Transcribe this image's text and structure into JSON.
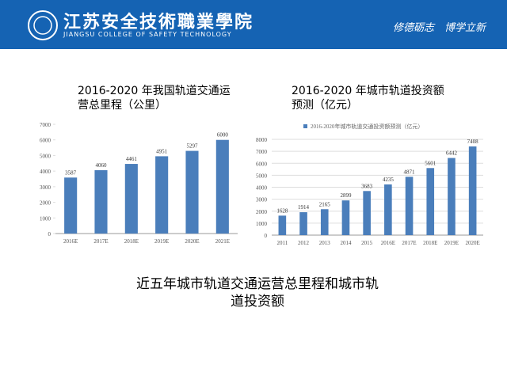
{
  "header": {
    "school_name": "江苏安全技術職業學院",
    "school_name_en": "JIANGSU COLLEGE OF SAFETY TECHNOLOGY",
    "motto": "修德砺志　博学立新"
  },
  "chart_data": [
    {
      "type": "bar",
      "title": "2016-2020 年我国轨道交通运营总里程（公里）",
      "categories": [
        "2016E",
        "2017E",
        "2018E",
        "2019E",
        "2020E",
        "2021E"
      ],
      "values": [
        3587,
        4060,
        4461,
        4951,
        5297,
        6000
      ],
      "color": "#4a7ebb",
      "ylim": [
        0,
        7000
      ],
      "yticks": [
        0,
        1000,
        2000,
        3000,
        4000,
        5000,
        6000,
        7000
      ],
      "grid": false
    },
    {
      "type": "bar",
      "title": "2016-2020 年城市轨道投资额预测（亿元）",
      "categories": [
        "2011",
        "2012",
        "2013",
        "2014",
        "2015",
        "2016E",
        "2017E",
        "2018E",
        "2019E",
        "2020E"
      ],
      "series": [
        {
          "name": "2016-2020年城市轨道交通投资额预测（亿元）",
          "color": "#4a7ebb",
          "values": [
            1628,
            1914,
            2165,
            2899,
            3683,
            4235,
            4871,
            5601,
            6442,
            7408
          ]
        }
      ],
      "ylim": [
        0,
        8000
      ],
      "yticks": [
        0,
        1000,
        2000,
        3000,
        4000,
        5000,
        6000,
        7000,
        8000
      ],
      "grid": true
    }
  ],
  "caption": "近五年城市轨道交通运营总里程和城市轨道投资额"
}
